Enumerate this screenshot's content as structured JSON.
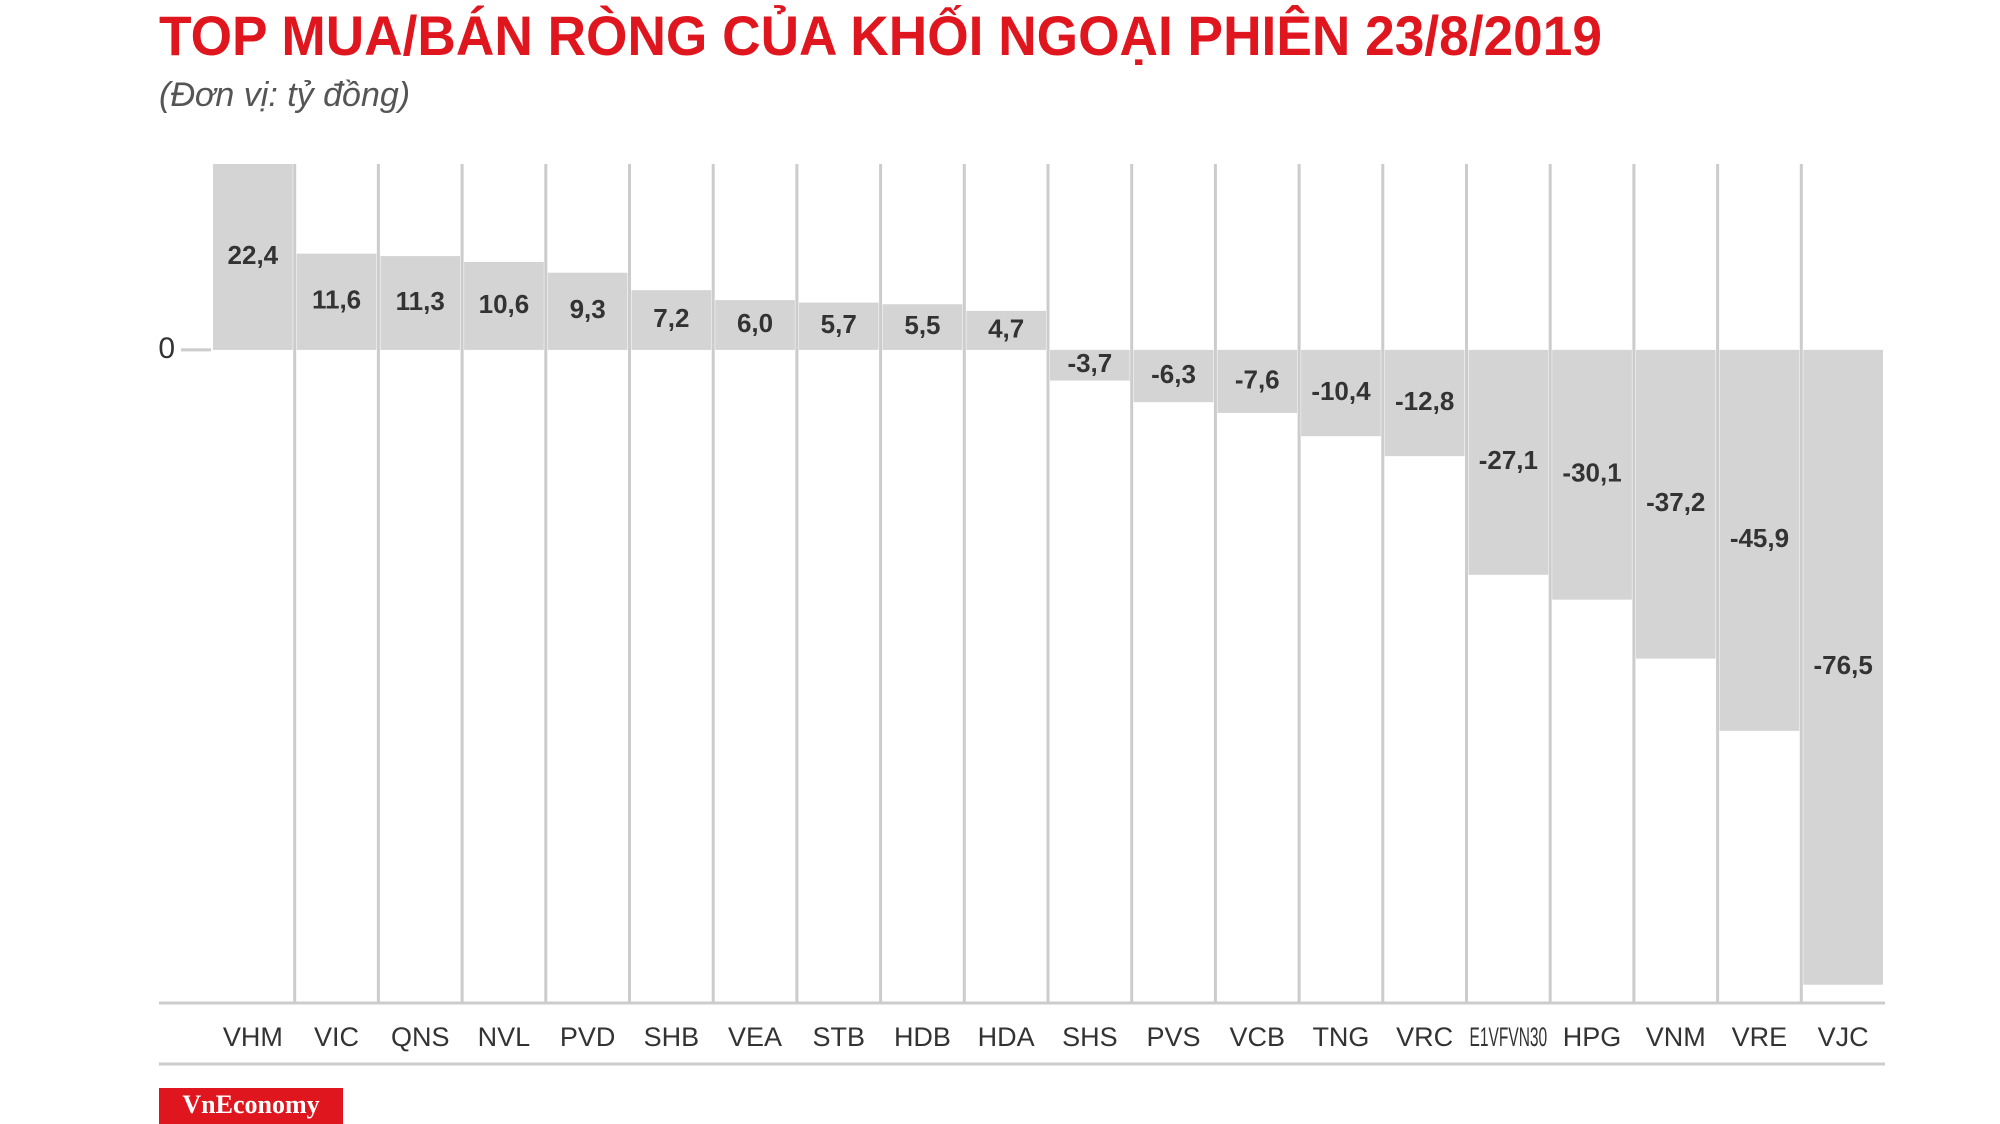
{
  "chart_data": {
    "type": "bar",
    "title": "TOP MUA/BÁN RÒNG CỦA KHỐI NGOẠI PHIÊN 23/8/2019",
    "subtitle": "(Đơn vị: tỷ đồng)",
    "categories": [
      "VHM",
      "VIC",
      "QNS",
      "NVL",
      "PVD",
      "SHB",
      "VEA",
      "STB",
      "HDB",
      "HDA",
      "SHS",
      "PVS",
      "VCB",
      "TNG",
      "VRC",
      "E1VFVN30",
      "HPG",
      "VNM",
      "VRE",
      "VJC"
    ],
    "values": [
      22.4,
      11.6,
      11.3,
      10.6,
      9.3,
      7.2,
      6.0,
      5.7,
      5.5,
      4.7,
      -3.7,
      -6.3,
      -7.6,
      -10.4,
      -12.8,
      -27.1,
      -30.1,
      -37.2,
      -45.9,
      -76.5
    ],
    "value_labels": [
      "22,4",
      "11,6",
      "11,3",
      "10,6",
      "9,3",
      "7,2",
      "6,0",
      "5,7",
      "5,5",
      "4,7",
      "-3,7",
      "-6,3",
      "-7,6",
      "-10,4",
      "-12,8",
      "-27,1",
      "-30,1",
      "-37,2",
      "-45,9",
      "-76,5"
    ],
    "color": "#d4d4d4",
    "ylim": [
      -78.7,
      22.4
    ],
    "yticks": [
      0
    ],
    "grid": true
  },
  "logo": "VnEconomy"
}
